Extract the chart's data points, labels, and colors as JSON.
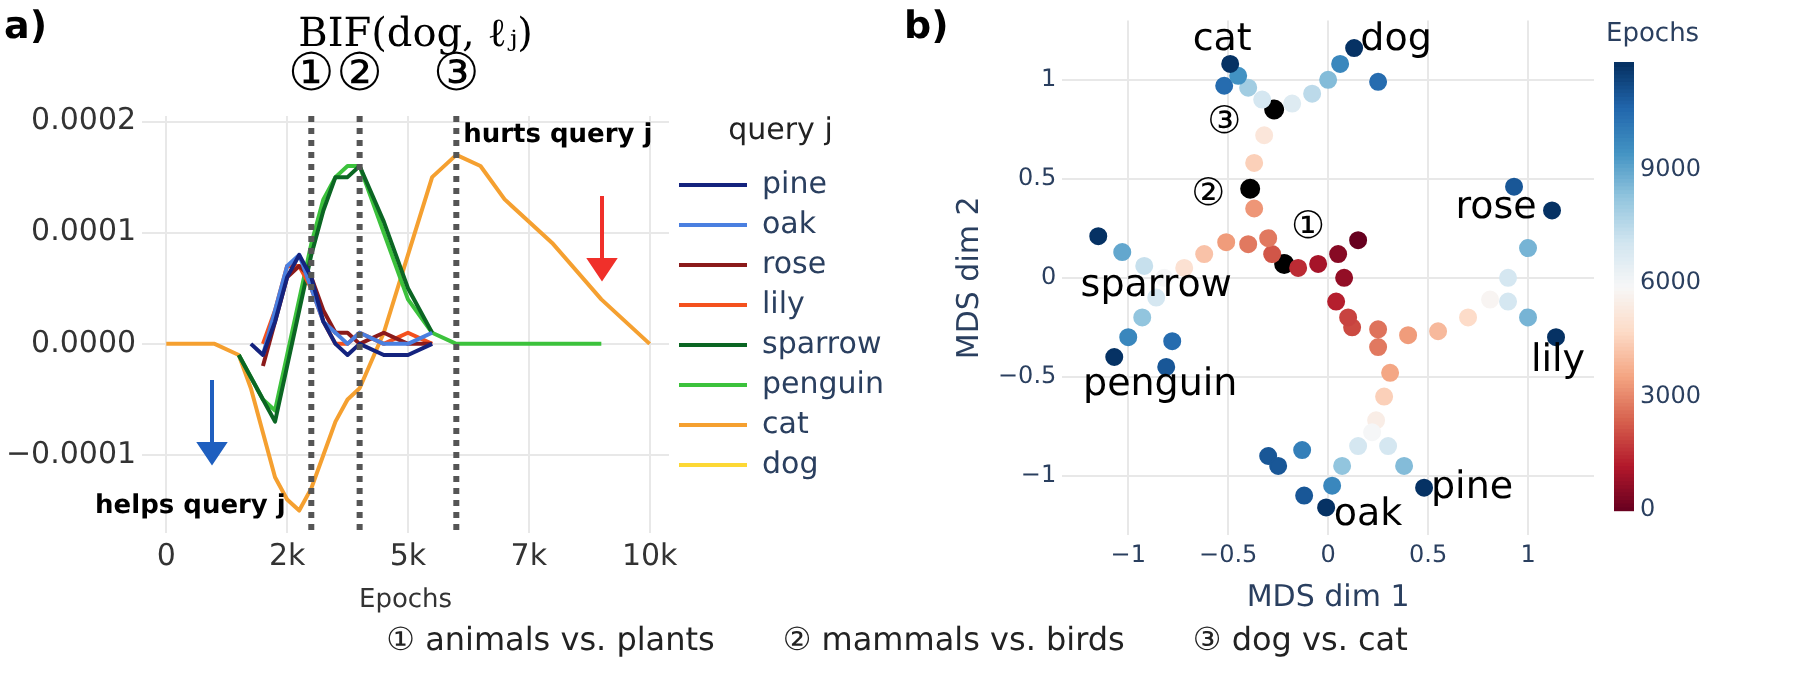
{
  "chart_data": [
    {
      "type": "line",
      "title": "BIF(dog, ℓⱼ)",
      "xlabel": "Epochs",
      "legend_title": "query j",
      "legend": "right",
      "grid": true,
      "xlim": [
        -500,
        10400
      ],
      "ylim": [
        -0.00017,
        0.000205
      ],
      "xticks": [
        0,
        {
          "value": 2500,
          "label": "2k"
        },
        {
          "value": 5000,
          "label": "5k"
        },
        {
          "value": 7500,
          "label": "7k"
        },
        {
          "value": 10000,
          "label": "10k"
        }
      ],
      "yticks": [
        {
          "value": -0.0001,
          "label": "−0.0001"
        },
        {
          "value": 0,
          "label": "0.0000"
        },
        {
          "value": 0.0001,
          "label": "0.0001"
        },
        {
          "value": 0.0002,
          "label": "0.0002"
        }
      ],
      "x": [
        0,
        1000,
        1500,
        1750,
        2000,
        2250,
        2500,
        2750,
        3000,
        3250,
        3500,
        3750,
        4000,
        4500,
        5000,
        5500,
        6000,
        6500,
        7000,
        8000,
        9000,
        10000
      ],
      "series": [
        {
          "name": "pine",
          "color": "#14237e",
          "values": [
            null,
            null,
            null,
            0,
            -1e-05,
            2e-05,
            6e-05,
            8e-05,
            6e-05,
            2e-05,
            0,
            -1e-05,
            0,
            -1e-05,
            -1e-05,
            0,
            null,
            null,
            null,
            null,
            null,
            null
          ]
        },
        {
          "name": "oak",
          "color": "#4a7fe0",
          "values": [
            null,
            null,
            null,
            null,
            -1e-05,
            3e-05,
            7e-05,
            8e-05,
            5e-05,
            2e-05,
            1e-05,
            0,
            1e-05,
            0,
            0,
            1e-05,
            null,
            null,
            null,
            null,
            null,
            null
          ]
        },
        {
          "name": "rose",
          "color": "#8b1a1a",
          "values": [
            null,
            null,
            null,
            null,
            -2e-05,
            2e-05,
            6e-05,
            7e-05,
            6e-05,
            3e-05,
            1e-05,
            1e-05,
            0,
            1e-05,
            0,
            0,
            null,
            null,
            null,
            null,
            null,
            null
          ]
        },
        {
          "name": "lily",
          "color": "#f4511e",
          "values": [
            null,
            null,
            null,
            null,
            0,
            3e-05,
            7e-05,
            7e-05,
            5e-05,
            2e-05,
            0,
            0,
            1e-05,
            0,
            1e-05,
            0,
            null,
            null,
            null,
            null,
            null,
            null
          ]
        },
        {
          "name": "sparrow",
          "color": "#0b6623",
          "values": [
            null,
            null,
            -1e-05,
            -3e-05,
            -5e-05,
            -7e-05,
            -2e-05,
            3e-05,
            8e-05,
            0.00012,
            0.00015,
            0.00015,
            0.00016,
            0.00011,
            5e-05,
            1e-05,
            null,
            null,
            null,
            null,
            null,
            null
          ]
        },
        {
          "name": "penguin",
          "color": "#3cc23c",
          "values": [
            null,
            null,
            -1e-05,
            -3e-05,
            -5e-05,
            -6e-05,
            -1e-05,
            4e-05,
            9e-05,
            0.00013,
            0.00015,
            0.00016,
            0.00016,
            0.0001,
            4e-05,
            1e-05,
            0,
            0,
            0,
            0,
            0,
            null
          ]
        },
        {
          "name": "cat",
          "color": "#f5a030",
          "values": [
            0,
            0,
            -1e-05,
            -4e-05,
            -8e-05,
            -0.00012,
            -0.00014,
            -0.00015,
            -0.00013,
            -0.0001,
            -7e-05,
            -5e-05,
            -4e-05,
            1e-05,
            8e-05,
            0.00015,
            0.00017,
            0.00016,
            0.00013,
            9e-05,
            4e-05,
            0
          ]
        },
        {
          "name": "dog",
          "color": "#fdd835",
          "values": [
            null,
            null,
            null,
            null,
            null,
            null,
            null,
            null,
            null,
            null,
            null,
            null,
            null,
            null,
            null,
            null,
            null,
            null,
            null,
            null,
            null,
            null
          ]
        }
      ],
      "ref_lines": [
        {
          "axis": "x",
          "value": 3000,
          "label": "①",
          "line_style": "dotted"
        },
        {
          "axis": "x",
          "value": 4000,
          "label": "②",
          "line_style": "dotted"
        },
        {
          "axis": "x",
          "value": 6000,
          "label": "③",
          "line_style": "dotted"
        }
      ],
      "annotations": [
        "a)",
        "helps query j",
        "hurts query j",
        "① animals vs. plants",
        "② mammals vs. birds",
        "③ dog vs. cat"
      ]
    },
    {
      "type": "scatter",
      "xlabel": "MDS dim 1",
      "ylabel": "MDS dim 2",
      "clabel": "Epochs",
      "grid": true,
      "xlim": [
        -1.33,
        1.33
      ],
      "ylim": [
        -1.3,
        1.3
      ],
      "xticks": [
        {
          "value": -1,
          "label": "−1"
        },
        {
          "value": -0.5,
          "label": "−0.5"
        },
        0,
        0.5,
        1
      ],
      "yticks": [
        {
          "value": -1,
          "label": "−1"
        },
        {
          "value": -0.5,
          "label": "−0.5"
        },
        0,
        0.5,
        1
      ],
      "clim": [
        0,
        11850
      ],
      "cticks": [
        0,
        3000,
        6000,
        9000
      ],
      "series": [
        {
          "x": [
            0.15,
            0.05,
            -0.05,
            -0.15,
            -0.3,
            -0.37,
            -0.37,
            -0.32
          ],
          "values": [
            0.19,
            0.12,
            0.07,
            0.05,
            0.2,
            0.35,
            0.58,
            0.72
          ],
          "cvalues": [
            0,
            500,
            1000,
            1500,
            2800,
            3300,
            4500,
            5200
          ],
          "colors": [
            "#67001f",
            "#870a24",
            "#a61429",
            "#bc2b34",
            "#e17960",
            "#ee9677",
            "#fbd0b9",
            "#fbe6da"
          ]
        },
        {
          "x": [
            -0.33,
            -0.4,
            -0.45,
            -0.49
          ],
          "values": [
            0.9,
            0.96,
            1.02,
            1.08
          ],
          "cvalues": [
            7000,
            8000,
            9500,
            11800
          ],
          "colors": [
            "#d5e7f1",
            "#a2cde2",
            "#4292c3",
            "#063264"
          ]
        },
        {
          "x": [
            -0.18,
            -0.08,
            0.0,
            0.06,
            0.13
          ],
          "values": [
            0.88,
            0.93,
            1.0,
            1.08,
            1.16
          ],
          "cvalues": [
            6700,
            7500,
            8500,
            9800,
            11800
          ],
          "colors": [
            "#deebf2",
            "#bcdaea",
            "#84bcd9",
            "#3a87bd",
            "#063264"
          ]
        },
        {
          "x": [
            -0.28,
            -0.4,
            -0.51,
            -0.62,
            -0.72,
            -0.82
          ],
          "values": [
            0.12,
            0.17,
            0.18,
            0.12,
            0.05,
            0.0
          ],
          "cvalues": [
            2200,
            2800,
            3400,
            4200,
            5000,
            6000
          ],
          "colors": [
            "#d15648",
            "#e17960",
            "#f09c7b",
            "#f9c2a8",
            "#fce1d2",
            "#f5f6f7"
          ]
        },
        {
          "x": [
            -0.92,
            -1.03,
            -1.15
          ],
          "values": [
            0.06,
            0.13,
            0.21
          ],
          "cvalues": [
            7300,
            9000,
            11800
          ],
          "colors": [
            "#c7e0ed",
            "#63a7ce",
            "#063264"
          ]
        },
        {
          "x": [
            -0.86,
            -0.93,
            -1.0,
            -1.07
          ],
          "values": [
            -0.1,
            -0.2,
            -0.3,
            -0.4
          ],
          "cvalues": [
            7000,
            8300,
            9800,
            11800
          ],
          "colors": [
            "#d5e7f1",
            "#92c5de",
            "#3a87bd",
            "#063264"
          ]
        },
        {
          "x": [
            0.08,
            0.04,
            0.1,
            0.25,
            0.4,
            0.55,
            0.7,
            0.81
          ],
          "values": [
            0.0,
            -0.12,
            -0.2,
            -0.26,
            -0.29,
            -0.27,
            -0.2,
            -0.11
          ],
          "cvalues": [
            700,
            1300,
            1900,
            2700,
            3400,
            4000,
            4800,
            5800
          ],
          "colors": [
            "#930e26",
            "#b51f2e",
            "#c84340",
            "#de735c",
            "#f09c7b",
            "#f7b99c",
            "#fddcc9",
            "#f8f4f2"
          ]
        },
        {
          "x": [
            0.9,
            1.0,
            1.12
          ],
          "values": [
            0.0,
            0.15,
            0.34
          ],
          "cvalues": [
            7000,
            8700,
            11800
          ],
          "colors": [
            "#d5e7f1",
            "#77b4d5",
            "#063264"
          ]
        },
        {
          "x": [
            0.9,
            1.0,
            1.14
          ],
          "values": [
            -0.12,
            -0.2,
            -0.3
          ],
          "cvalues": [
            7000,
            8700,
            11800
          ],
          "colors": [
            "#d5e7f1",
            "#77b4d5",
            "#063264"
          ]
        },
        {
          "x": [
            0.12,
            0.25,
            0.31,
            0.28,
            0.24,
            0.22
          ],
          "values": [
            -0.25,
            -0.35,
            -0.48,
            -0.6,
            -0.72,
            -0.78
          ],
          "cvalues": [
            2000,
            2800,
            3600,
            4500,
            5500,
            6000
          ],
          "colors": [
            "#cb4a42",
            "#e17960",
            "#f4a785",
            "#fbd0b9",
            "#f9ede6",
            "#f5f6f7"
          ]
        },
        {
          "x": [
            0.15,
            0.07,
            0.02,
            -0.01
          ],
          "values": [
            -0.85,
            -0.95,
            -1.05,
            -1.16
          ],
          "cvalues": [
            7000,
            8300,
            9800,
            11800
          ],
          "colors": [
            "#d5e7f1",
            "#92c5de",
            "#3a87bd",
            "#063264"
          ]
        },
        {
          "x": [
            0.3,
            0.38,
            0.48
          ],
          "values": [
            -0.85,
            -0.95,
            -1.06
          ],
          "cvalues": [
            7000,
            8500,
            11800
          ],
          "colors": [
            "#d5e7f1",
            "#84bcd9",
            "#063264"
          ]
        },
        {
          "x": [
            -0.52,
            0.25,
            0.93,
            -0.78,
            -0.81,
            -0.3,
            -0.25,
            -0.13,
            -0.12
          ],
          "values": [
            0.97,
            0.99,
            0.46,
            -0.32,
            -0.45,
            -0.9,
            -0.95,
            -0.87,
            -1.1
          ],
          "cvalues": [
            10500,
            10500,
            11000,
            10500,
            11000,
            11000,
            11000,
            10000,
            11000
          ],
          "colors": [
            "#266caf",
            "#266caf",
            "#195797",
            "#266caf",
            "#195797",
            "#195797",
            "#195797",
            "#347fb9",
            "#195797"
          ]
        },
        {
          "color": "#000000",
          "x": [
            -0.22,
            -0.39,
            -0.27
          ],
          "values": [
            0.07,
            0.45,
            0.85
          ]
        }
      ],
      "annotations": [
        "b)",
        "cat",
        "dog",
        "③",
        "②",
        "①",
        "rose",
        "sparrow",
        "penguin",
        "lily",
        "pine",
        "oak"
      ]
    }
  ]
}
